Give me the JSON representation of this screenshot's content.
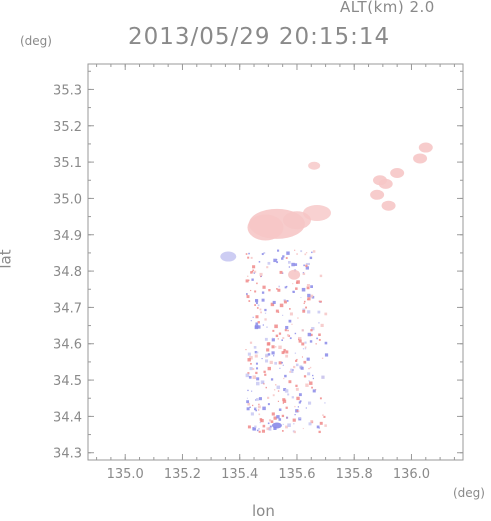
{
  "header": {
    "altitude_label": "ALT(km) 2.0",
    "timestamp": "2013/05/29 20:15:14"
  },
  "axes": {
    "x_title": "lon",
    "y_title": "lat",
    "x_unit": "(deg)",
    "y_unit": "(deg)"
  },
  "chart_data": {
    "type": "heatmap",
    "xlabel": "lon",
    "ylabel": "lat",
    "xlim": [
      134.87,
      136.18
    ],
    "ylim": [
      34.28,
      35.37
    ],
    "x_ticks": [
      "135.0",
      "135.2",
      "135.4",
      "135.6",
      "135.8",
      "136.0"
    ],
    "y_ticks": [
      "34.3",
      "34.4",
      "34.5",
      "34.6",
      "34.7",
      "34.8",
      "34.9",
      "35.0",
      "35.1",
      "35.2",
      "35.3"
    ],
    "colors": {
      "positive": "#f08a8a",
      "negative": "#8a8ae8",
      "weak_positive": "#f6c6c6",
      "weak_negative": "#c8c8f2"
    }
  }
}
